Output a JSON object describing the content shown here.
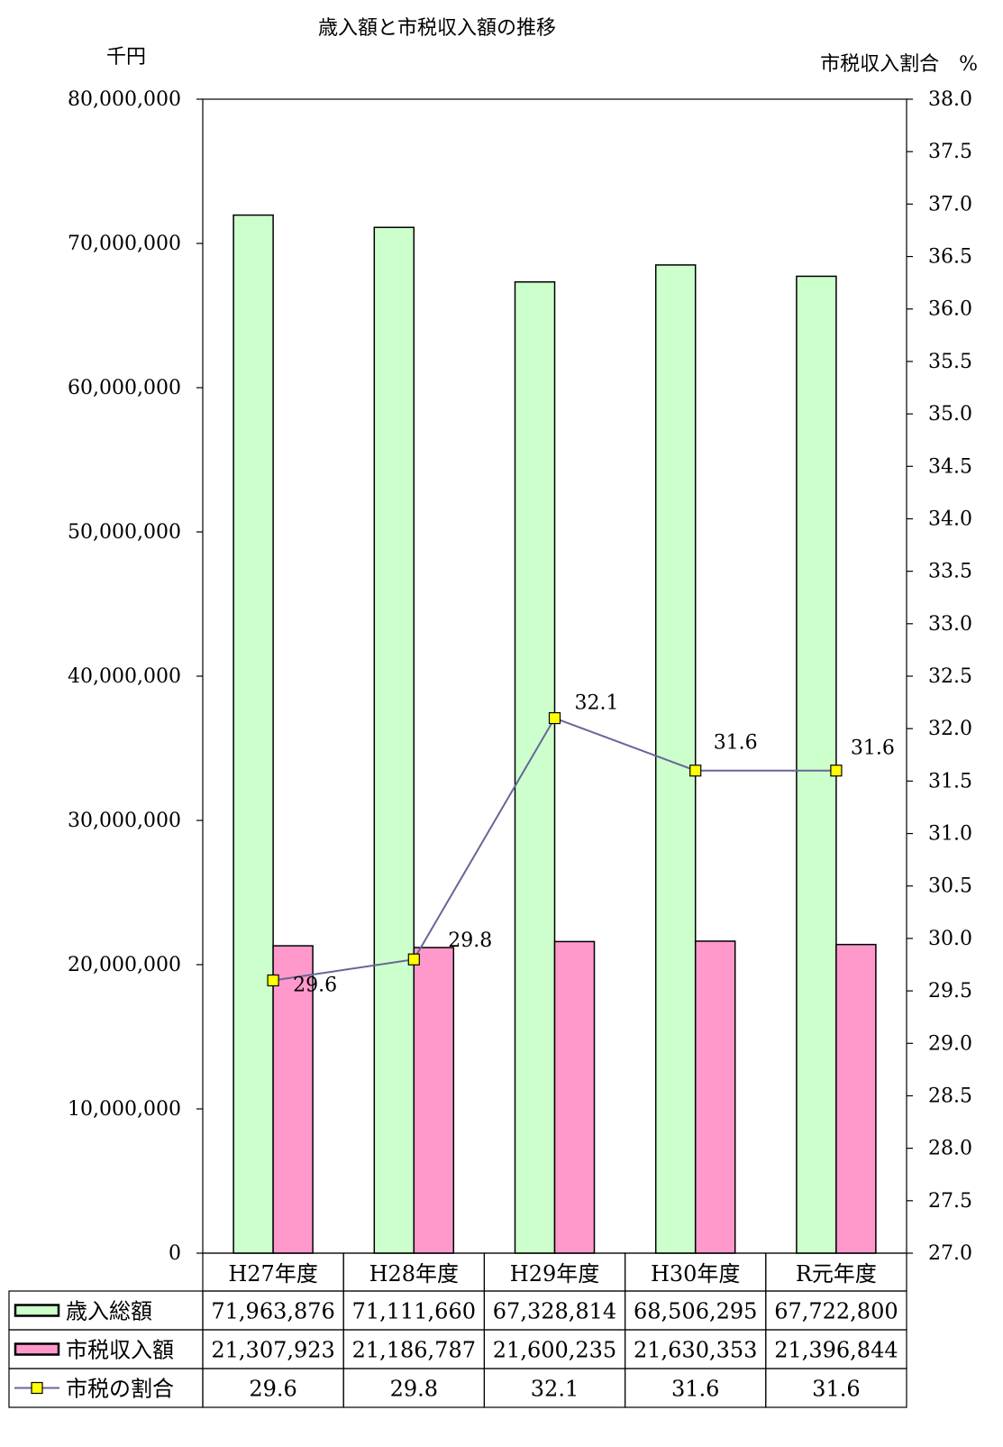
{
  "chart_data": {
    "type": "bar",
    "title": "歳入額と市税収入額の推移",
    "ylabel_left": "千円",
    "ylabel_right": "市税収入割合　%",
    "categories": [
      "H27年度",
      "H28年度",
      "H29年度",
      "H30年度",
      "R元年度"
    ],
    "ylim_left": [
      0,
      80000000
    ],
    "yticks_left": [
      "0",
      "10,000,000",
      "20,000,000",
      "30,000,000",
      "40,000,000",
      "50,000,000",
      "60,000,000",
      "70,000,000",
      "80,000,000"
    ],
    "ylim_right": [
      27.0,
      38.0
    ],
    "yticks_right": [
      "27.0",
      "27.5",
      "28.0",
      "28.5",
      "29.0",
      "29.5",
      "30.0",
      "30.5",
      "31.0",
      "31.5",
      "32.0",
      "32.5",
      "33.0",
      "33.5",
      "34.0",
      "34.5",
      "35.0",
      "35.5",
      "36.0",
      "36.5",
      "37.0",
      "37.5",
      "38.0"
    ],
    "grid": false,
    "legend": "data-table",
    "series": [
      {
        "name": "歳入総額",
        "kind": "bar",
        "axis": "left",
        "color": "#ccffcc",
        "values": [
          71963876,
          71111660,
          67328814,
          68506295,
          67722800
        ],
        "labels": [
          "71,963,876",
          "71,111,660",
          "67,328,814",
          "68,506,295",
          "67,722,800"
        ]
      },
      {
        "name": "市税収入額",
        "kind": "bar",
        "axis": "left",
        "color": "#ff99cc",
        "values": [
          21307923,
          21186787,
          21600235,
          21630353,
          21396844
        ],
        "labels": [
          "21,307,923",
          "21,186,787",
          "21,600,235",
          "21,630,353",
          "21,396,844"
        ]
      },
      {
        "name": "市税の割合",
        "kind": "line",
        "axis": "right",
        "color": "#666699",
        "marker_color": "#ffff00",
        "values": [
          29.6,
          29.8,
          32.1,
          31.6,
          31.6
        ],
        "labels": [
          "29.6",
          "29.8",
          "32.1",
          "31.6",
          "31.6"
        ]
      }
    ]
  }
}
